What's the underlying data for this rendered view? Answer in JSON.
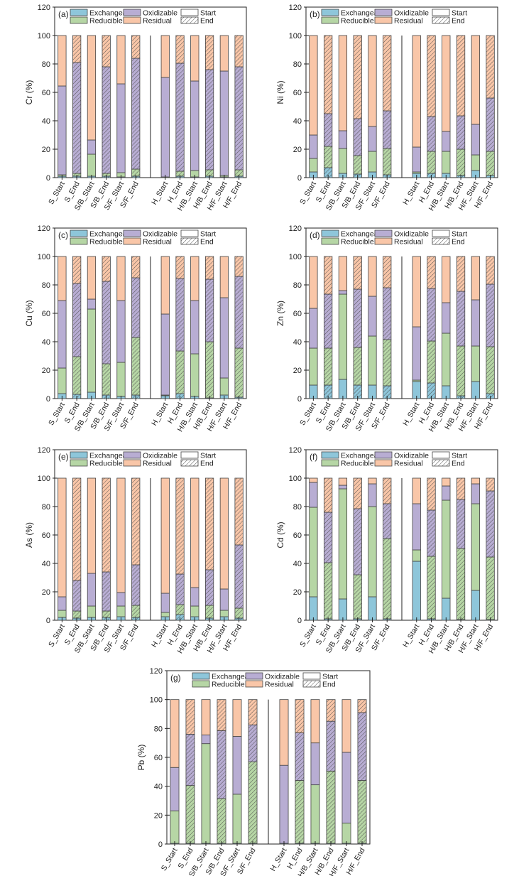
{
  "colors": {
    "Exchangeable": "#8ec6da",
    "Reducible": "#b6d6a5",
    "Oxidizable": "#b8add3",
    "Residual": "#f9c6a8"
  },
  "chart_data": [
    {
      "type": "bar",
      "stacked": true,
      "panel": "(a)",
      "ylabel": "Cr (%)",
      "ylim": [
        0,
        120
      ],
      "yticks": [
        0,
        20,
        40,
        60,
        80,
        100,
        120
      ],
      "categories": [
        "S_Start",
        "S_End",
        "S/B_Start",
        "S/B_End",
        "S/F_Start",
        "S/F_End",
        "H_Start",
        "H_End",
        "H/B_Start",
        "H/B_End",
        "H/F_Start",
        "H/F_End"
      ],
      "hatched": [
        false,
        true,
        false,
        true,
        false,
        true,
        false,
        true,
        false,
        true,
        false,
        true
      ],
      "legend": [
        "Exchangeable",
        "Oxidizable",
        "Start",
        "Reducible",
        "Residual",
        "End"
      ],
      "series": [
        {
          "name": "Exchangeable",
          "values": [
            1,
            1,
            1,
            1,
            0.5,
            1,
            0,
            1,
            0.5,
            1,
            0.5,
            1
          ]
        },
        {
          "name": "Reducible",
          "values": [
            1,
            2,
            15.5,
            2,
            3,
            5,
            0.5,
            3.5,
            4.5,
            4.5,
            1,
            4.5
          ]
        },
        {
          "name": "Oxidizable",
          "values": [
            62.5,
            78,
            10,
            75,
            62.5,
            78,
            70,
            76,
            63,
            70.5,
            73.5,
            72.5
          ]
        },
        {
          "name": "Residual",
          "values": [
            35.5,
            19,
            73.5,
            22,
            34,
            16,
            29.5,
            19.5,
            32,
            24,
            25,
            22
          ]
        }
      ]
    },
    {
      "type": "bar",
      "stacked": true,
      "panel": "(b)",
      "ylabel": "Ni (%)",
      "ylim": [
        0,
        120
      ],
      "yticks": [
        0,
        20,
        40,
        60,
        80,
        100,
        120
      ],
      "categories": [
        "S_Start",
        "S_End",
        "S/B_Start",
        "S/B_End",
        "S/F_Start",
        "S/F_End",
        "H_Start",
        "H_End",
        "H/B_Start",
        "H/B_End",
        "H/F_Start",
        "H/F_End"
      ],
      "hatched": [
        false,
        true,
        false,
        true,
        false,
        true,
        false,
        true,
        false,
        true,
        false,
        true
      ],
      "legend": [
        "Exchangeable",
        "Oxidizable",
        "Start",
        "Reducible",
        "Residual",
        "End"
      ],
      "series": [
        {
          "name": "Exchangeable",
          "values": [
            4,
            7,
            3,
            2.5,
            4,
            2,
            3,
            3,
            3,
            1.5,
            5,
            1.5
          ]
        },
        {
          "name": "Reducible",
          "values": [
            9.5,
            15,
            17.5,
            13,
            14.5,
            18.5,
            1,
            15.5,
            15.5,
            18.5,
            11,
            17
          ]
        },
        {
          "name": "Oxidizable",
          "values": [
            16.5,
            23,
            12.5,
            26,
            17.5,
            26.5,
            17.5,
            24.5,
            14,
            23.5,
            21.5,
            37.5
          ]
        },
        {
          "name": "Residual",
          "values": [
            70,
            55,
            67,
            58.5,
            64,
            53,
            78.5,
            57,
            67.5,
            56.5,
            62.5,
            44
          ]
        }
      ]
    },
    {
      "type": "bar",
      "stacked": true,
      "panel": "(c)",
      "ylabel": "Cu (%)",
      "ylim": [
        0,
        120
      ],
      "yticks": [
        0,
        20,
        40,
        60,
        80,
        100,
        120
      ],
      "categories": [
        "S_Start",
        "S_End",
        "S/B_Start",
        "S/B_End",
        "S/F_Start",
        "S/F_End",
        "H_Start",
        "H_End",
        "H/B_Start",
        "H/B_End",
        "H/F_Start",
        "H/F_End"
      ],
      "hatched": [
        false,
        true,
        false,
        true,
        false,
        true,
        false,
        true,
        false,
        true,
        false,
        true
      ],
      "legend": [
        "Exchangeable",
        "Oxidizable",
        "Start",
        "Reducible",
        "Residual",
        "End"
      ],
      "series": [
        {
          "name": "Exchangeable",
          "values": [
            3.5,
            3,
            4.5,
            2.5,
            1.5,
            2.5,
            2,
            3.5,
            1.5,
            0.5,
            2.5,
            1
          ]
        },
        {
          "name": "Reducible",
          "values": [
            18,
            26.5,
            58.5,
            22,
            24,
            40.5,
            0.5,
            30,
            30,
            39.5,
            12,
            34.5
          ]
        },
        {
          "name": "Oxidizable",
          "values": [
            47.5,
            51.5,
            7,
            58,
            43.5,
            42,
            57,
            51,
            37.5,
            44,
            56.5,
            50.5
          ]
        },
        {
          "name": "Residual",
          "values": [
            31,
            19,
            30,
            17.5,
            31,
            15,
            40.5,
            15.5,
            31,
            16,
            29,
            14
          ]
        }
      ]
    },
    {
      "type": "bar",
      "stacked": true,
      "panel": "(d)",
      "ylabel": "Zn (%)",
      "ylim": [
        0,
        120
      ],
      "yticks": [
        0,
        20,
        40,
        60,
        80,
        100,
        120
      ],
      "categories": [
        "S_Start",
        "S_End",
        "S/B_Start",
        "S/B_End",
        "S/F_Start",
        "S/F_End",
        "H_Start",
        "H_End",
        "H/B_Start",
        "H/B_End",
        "H/F_Start",
        "H/F_End"
      ],
      "hatched": [
        false,
        true,
        false,
        true,
        false,
        true,
        false,
        true,
        false,
        true,
        false,
        true
      ],
      "legend": [
        "Exchangeable",
        "Oxidizable",
        "Start",
        "Reducible",
        "Residual",
        "End"
      ],
      "series": [
        {
          "name": "Exchangeable",
          "values": [
            9.5,
            9.5,
            13.5,
            9.5,
            9.5,
            9,
            12,
            11,
            9,
            2,
            12,
            3.5
          ]
        },
        {
          "name": "Reducible",
          "values": [
            26,
            26,
            60,
            26.5,
            34.5,
            32.5,
            1,
            29.5,
            37,
            35,
            25,
            33
          ]
        },
        {
          "name": "Oxidizable",
          "values": [
            28,
            38,
            2.5,
            41,
            28,
            36.5,
            37.5,
            37,
            21.5,
            38.5,
            32.5,
            44
          ]
        },
        {
          "name": "Residual",
          "values": [
            36.5,
            26.5,
            24,
            23,
            28,
            22,
            49.5,
            22.5,
            32.5,
            24.5,
            30.5,
            19.5
          ]
        }
      ]
    },
    {
      "type": "bar",
      "stacked": true,
      "panel": "(e)",
      "ylabel": "As (%)",
      "ylim": [
        0,
        120
      ],
      "yticks": [
        0,
        20,
        40,
        60,
        80,
        100,
        120
      ],
      "categories": [
        "S_Start",
        "S_End",
        "S/B_Start",
        "S/B_End",
        "S/F_Start",
        "S/F_End",
        "H_Start",
        "H_End",
        "H/B_Start",
        "H/B_End",
        "H/F_Start",
        "H/F_End"
      ],
      "hatched": [
        false,
        true,
        false,
        true,
        false,
        true,
        false,
        true,
        false,
        true,
        false,
        true
      ],
      "legend": [
        "Exchangeable",
        "Oxidizable",
        "Start",
        "Reducible",
        "Residual",
        "End"
      ],
      "series": [
        {
          "name": "Exchangeable",
          "values": [
            2,
            1.5,
            2,
            2,
            2.5,
            2,
            2.5,
            4,
            2.5,
            1.5,
            2.5,
            1.5
          ]
        },
        {
          "name": "Reducible",
          "values": [
            5,
            5,
            8,
            4.5,
            7.5,
            8.5,
            3,
            7,
            7.5,
            9,
            4.5,
            7
          ]
        },
        {
          "name": "Oxidizable",
          "values": [
            9.5,
            21.5,
            23,
            27.5,
            9.5,
            28.5,
            13.5,
            21.5,
            13,
            25,
            15,
            44.5
          ]
        },
        {
          "name": "Residual",
          "values": [
            83.5,
            72,
            67,
            66,
            80.5,
            61,
            81,
            67.5,
            77,
            64.5,
            78,
            47
          ]
        }
      ]
    },
    {
      "type": "bar",
      "stacked": true,
      "panel": "(f)",
      "ylabel": "Cd (%)",
      "ylim": [
        0,
        120
      ],
      "yticks": [
        0,
        20,
        40,
        60,
        80,
        100,
        120
      ],
      "categories": [
        "S_Start",
        "S_End",
        "S/B_Start",
        "S/B_End",
        "S/F_Start",
        "S/F_End",
        "H_Start",
        "H_End",
        "H/B_Start",
        "H/B_End",
        "H/F_Start",
        "H/F_End"
      ],
      "hatched": [
        false,
        true,
        false,
        true,
        false,
        true,
        false,
        true,
        false,
        true,
        false,
        true
      ],
      "legend": [
        "Exchangeable",
        "Oxidizable",
        "Start",
        "Reducible",
        "Residual",
        "End"
      ],
      "series": [
        {
          "name": "Exchangeable",
          "values": [
            16.5,
            1,
            15,
            1,
            16.5,
            1,
            41.5,
            1,
            15.5,
            0.5,
            21,
            0.5
          ]
        },
        {
          "name": "Reducible",
          "values": [
            63,
            39.5,
            77.5,
            31,
            63.5,
            56.5,
            8,
            44,
            69,
            50,
            61,
            44
          ]
        },
        {
          "name": "Oxidizable",
          "values": [
            17.5,
            35.5,
            2.5,
            46.5,
            16,
            24.5,
            32.5,
            32.5,
            10,
            34.5,
            14,
            46.5
          ]
        },
        {
          "name": "Residual",
          "values": [
            3,
            24,
            5,
            21.5,
            4,
            18,
            18,
            22.5,
            5.5,
            15,
            4,
            9
          ]
        }
      ]
    },
    {
      "type": "bar",
      "stacked": true,
      "panel": "(g)",
      "ylabel": "Pb (%)",
      "ylim": [
        0,
        120
      ],
      "yticks": [
        0,
        20,
        40,
        60,
        80,
        100,
        120
      ],
      "categories": [
        "S_Start",
        "S_End",
        "S/B_Start",
        "S/B_End",
        "S/F_Start",
        "S/F_End",
        "H_Start",
        "H_End",
        "H/B_Start",
        "H/B_End",
        "H/F_Start",
        "H/F_End"
      ],
      "hatched": [
        false,
        true,
        false,
        true,
        false,
        true,
        false,
        true,
        false,
        true,
        false,
        true
      ],
      "legend": [
        "Exchangeable",
        "Oxidizable",
        "Start",
        "Reducible",
        "Residual",
        "End"
      ],
      "series": [
        {
          "name": "Exchangeable",
          "values": [
            0.5,
            0.5,
            0.5,
            0.5,
            0.5,
            0.5,
            0.5,
            0.5,
            0.5,
            0.5,
            0.5,
            0.5
          ]
        },
        {
          "name": "Reducible",
          "values": [
            22.5,
            40,
            69,
            31,
            34,
            56.5,
            0,
            43.5,
            40.5,
            50,
            14,
            43.5
          ]
        },
        {
          "name": "Oxidizable",
          "values": [
            30,
            35.5,
            6,
            47,
            40,
            25.5,
            54,
            33,
            29,
            34.5,
            49,
            47
          ]
        },
        {
          "name": "Residual",
          "values": [
            47,
            24,
            24.5,
            21.5,
            25.5,
            17.5,
            45.5,
            23,
            30,
            15,
            36.5,
            9
          ]
        }
      ]
    }
  ]
}
